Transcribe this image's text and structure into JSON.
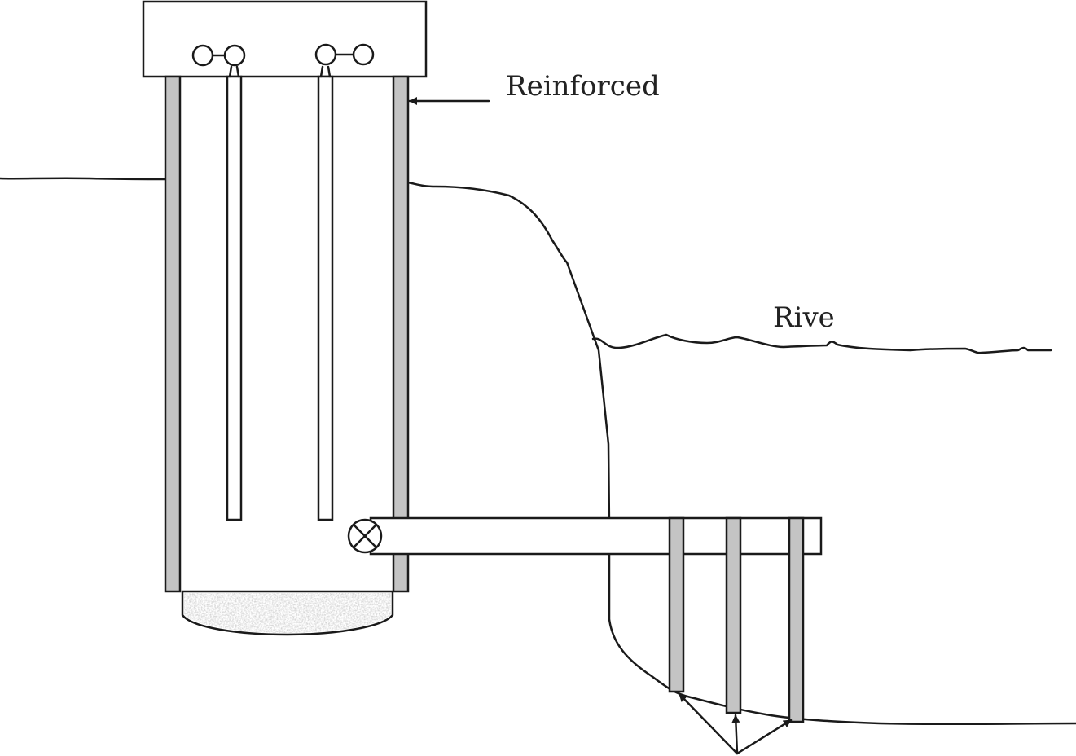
{
  "labels": {
    "reinforced": "Reinforced",
    "river": "Rive"
  },
  "colors": {
    "line": "#1a1a1a",
    "wall_fill": "#c4c4c4",
    "gravel_fill": "#b8b8b8",
    "background": "#ffffff"
  }
}
